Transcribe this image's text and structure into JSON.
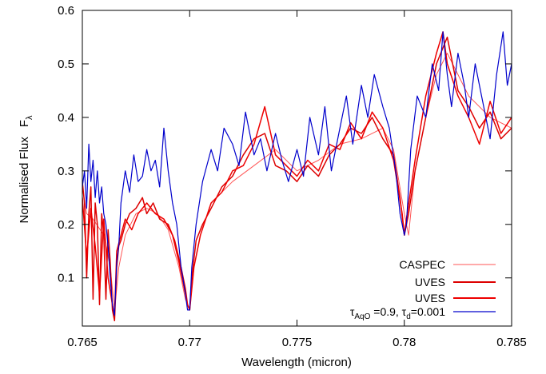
{
  "chart_data": {
    "type": "line",
    "xlabel": "Wavelength (micron)",
    "ylabel": "Normalised Flux",
    "ylabel_symbol": "F",
    "ylabel_sub": "λ",
    "xlim": [
      0.765,
      0.785
    ],
    "ylim": [
      0.01,
      0.6
    ],
    "x_ticks": [
      0.765,
      0.77,
      0.775,
      0.78,
      0.785
    ],
    "x_tick_labels": [
      "0.765",
      "0.77",
      "0.775",
      "0.78",
      "0.785"
    ],
    "y_ticks": [
      0.1,
      0.2,
      0.3,
      0.4,
      0.5,
      0.6
    ],
    "y_tick_labels": [
      "0.1",
      "0.2",
      "0.3",
      "0.4",
      "0.5",
      "0.6"
    ],
    "grid": false,
    "legend_position": "bottom-right",
    "series": [
      {
        "name": "CASPEC",
        "color": "#ff5555",
        "x": [
          0.765,
          0.7652,
          0.7655,
          0.766,
          0.7663,
          0.7665,
          0.7667,
          0.767,
          0.7675,
          0.768,
          0.7685,
          0.769,
          0.7695,
          0.7698,
          0.77,
          0.7702,
          0.7705,
          0.771,
          0.772,
          0.773,
          0.774,
          0.775,
          0.776,
          0.777,
          0.778,
          0.779,
          0.7795,
          0.78,
          0.7802,
          0.7805,
          0.781,
          0.7815,
          0.782,
          0.783,
          0.784,
          0.785
        ],
        "y": [
          0.27,
          0.22,
          0.21,
          0.18,
          0.12,
          0.04,
          0.12,
          0.18,
          0.22,
          0.23,
          0.22,
          0.19,
          0.12,
          0.06,
          0.04,
          0.12,
          0.18,
          0.24,
          0.28,
          0.31,
          0.34,
          0.3,
          0.32,
          0.35,
          0.36,
          0.38,
          0.34,
          0.22,
          0.18,
          0.3,
          0.4,
          0.48,
          0.52,
          0.44,
          0.4,
          0.38
        ]
      },
      {
        "name": "UVES",
        "color": "#dd0000",
        "x": [
          0.765,
          0.7651,
          0.7652,
          0.7653,
          0.7654,
          0.7655,
          0.7656,
          0.7657,
          0.7658,
          0.7659,
          0.766,
          0.7661,
          0.7662,
          0.7663,
          0.7664,
          0.7665,
          0.7666,
          0.7667,
          0.7668,
          0.767,
          0.7672,
          0.7675,
          0.7678,
          0.768,
          0.7683,
          0.7686,
          0.769,
          0.7693,
          0.7696,
          0.7698,
          0.7699,
          0.77,
          0.7701,
          0.7703,
          0.7706,
          0.771,
          0.7715,
          0.772,
          0.7725,
          0.773,
          0.7735,
          0.774,
          0.7745,
          0.775,
          0.7755,
          0.776,
          0.7765,
          0.777,
          0.7775,
          0.778,
          0.7785,
          0.779,
          0.7795,
          0.7798,
          0.78,
          0.7802,
          0.7805,
          0.781,
          0.7815,
          0.782,
          0.7825,
          0.783,
          0.7835,
          0.784,
          0.7845,
          0.785
        ],
        "y": [
          0.28,
          0.24,
          0.1,
          0.22,
          0.27,
          0.06,
          0.24,
          0.2,
          0.05,
          0.22,
          0.18,
          0.06,
          0.19,
          0.13,
          0.04,
          0.02,
          0.12,
          0.16,
          0.17,
          0.2,
          0.22,
          0.23,
          0.25,
          0.22,
          0.24,
          0.21,
          0.2,
          0.17,
          0.12,
          0.08,
          0.05,
          0.04,
          0.1,
          0.17,
          0.2,
          0.23,
          0.27,
          0.29,
          0.33,
          0.36,
          0.37,
          0.31,
          0.3,
          0.28,
          0.31,
          0.29,
          0.33,
          0.35,
          0.38,
          0.37,
          0.4,
          0.36,
          0.33,
          0.25,
          0.18,
          0.22,
          0.3,
          0.4,
          0.5,
          0.55,
          0.45,
          0.42,
          0.38,
          0.41,
          0.36,
          0.38
        ]
      },
      {
        "name": "UVES",
        "color": "#ee0000",
        "x": [
          0.765,
          0.7652,
          0.7654,
          0.7656,
          0.7658,
          0.766,
          0.7662,
          0.7664,
          0.7665,
          0.7666,
          0.7668,
          0.767,
          0.7673,
          0.7676,
          0.768,
          0.7684,
          0.7688,
          0.7692,
          0.7695,
          0.7697,
          0.7699,
          0.77,
          0.7702,
          0.7705,
          0.771,
          0.7715,
          0.772,
          0.7725,
          0.773,
          0.7735,
          0.774,
          0.7745,
          0.775,
          0.7755,
          0.776,
          0.7765,
          0.777,
          0.7775,
          0.778,
          0.7785,
          0.779,
          0.7795,
          0.7799,
          0.78,
          0.7801,
          0.7805,
          0.781,
          0.7815,
          0.7818,
          0.782,
          0.7825,
          0.783,
          0.7835,
          0.784,
          0.7845,
          0.785
        ],
        "y": [
          0.25,
          0.14,
          0.23,
          0.16,
          0.07,
          0.21,
          0.1,
          0.05,
          0.03,
          0.15,
          0.18,
          0.21,
          0.19,
          0.22,
          0.24,
          0.22,
          0.21,
          0.18,
          0.13,
          0.09,
          0.05,
          0.04,
          0.12,
          0.18,
          0.24,
          0.26,
          0.3,
          0.31,
          0.35,
          0.42,
          0.33,
          0.31,
          0.29,
          0.32,
          0.3,
          0.35,
          0.34,
          0.39,
          0.36,
          0.41,
          0.38,
          0.32,
          0.22,
          0.18,
          0.21,
          0.32,
          0.44,
          0.52,
          0.56,
          0.5,
          0.44,
          0.4,
          0.35,
          0.43,
          0.37,
          0.4
        ]
      },
      {
        "name": "τAqO =0.9, τd=0.001",
        "name_parts": [
          "τ",
          "AqO",
          " =0.9, τ",
          "d",
          "=0.001"
        ],
        "color": "#0000cc",
        "x": [
          0.765,
          0.7651,
          0.7652,
          0.7653,
          0.7654,
          0.7655,
          0.7656,
          0.7657,
          0.7658,
          0.7659,
          0.766,
          0.7661,
          0.7662,
          0.7663,
          0.7664,
          0.7665,
          0.7666,
          0.7667,
          0.7668,
          0.767,
          0.7672,
          0.7674,
          0.7676,
          0.7678,
          0.768,
          0.7682,
          0.7684,
          0.7686,
          0.7688,
          0.769,
          0.7692,
          0.7694,
          0.7696,
          0.7698,
          0.7699,
          0.77,
          0.7701,
          0.7703,
          0.7706,
          0.771,
          0.7713,
          0.7716,
          0.772,
          0.7723,
          0.7726,
          0.773,
          0.7733,
          0.7736,
          0.774,
          0.7743,
          0.7746,
          0.775,
          0.7753,
          0.7756,
          0.776,
          0.7763,
          0.7766,
          0.777,
          0.7773,
          0.7776,
          0.778,
          0.7783,
          0.7786,
          0.779,
          0.7793,
          0.7796,
          0.7798,
          0.78,
          0.7801,
          0.7803,
          0.7806,
          0.781,
          0.7813,
          0.7816,
          0.7818,
          0.782,
          0.7822,
          0.7825,
          0.7828,
          0.783,
          0.7833,
          0.7836,
          0.784,
          0.7843,
          0.7846,
          0.7848,
          0.785
        ],
        "y": [
          0.27,
          0.3,
          0.23,
          0.35,
          0.28,
          0.32,
          0.25,
          0.3,
          0.24,
          0.27,
          0.22,
          0.2,
          0.16,
          0.1,
          0.05,
          0.03,
          0.13,
          0.16,
          0.24,
          0.3,
          0.26,
          0.33,
          0.28,
          0.29,
          0.34,
          0.3,
          0.32,
          0.27,
          0.38,
          0.3,
          0.24,
          0.2,
          0.12,
          0.07,
          0.04,
          0.04,
          0.12,
          0.2,
          0.28,
          0.34,
          0.3,
          0.38,
          0.35,
          0.31,
          0.41,
          0.33,
          0.36,
          0.3,
          0.37,
          0.32,
          0.28,
          0.34,
          0.29,
          0.4,
          0.33,
          0.42,
          0.3,
          0.38,
          0.44,
          0.35,
          0.46,
          0.4,
          0.48,
          0.42,
          0.38,
          0.3,
          0.22,
          0.18,
          0.2,
          0.34,
          0.44,
          0.4,
          0.5,
          0.45,
          0.56,
          0.48,
          0.42,
          0.52,
          0.46,
          0.4,
          0.5,
          0.44,
          0.36,
          0.48,
          0.56,
          0.46,
          0.5
        ]
      }
    ]
  }
}
